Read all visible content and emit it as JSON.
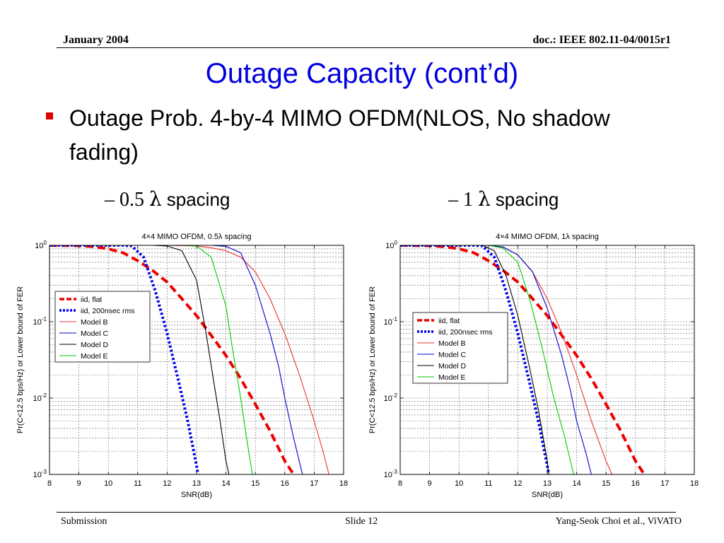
{
  "header": {
    "date": "January 2004",
    "doc": "doc.: IEEE 802.11-04/0015r1"
  },
  "title": "Outage Capacity (cont’d)",
  "bullet": "Outage Prob. 4-by-4 MIMO OFDM(NLOS, No shadow fading)",
  "subs": [
    {
      "dash": "–",
      "value": "0.5",
      "lambda": "λ",
      "word": "spacing"
    },
    {
      "dash": "–",
      "value": "1",
      "lambda": "λ",
      "word": "spacing"
    }
  ],
  "footer": {
    "left": "Submission",
    "center": "Slide 12",
    "right": "Yang-Seok Choi et al., ViVATO"
  },
  "colors": {
    "title": "#0000e0",
    "bullet": "#e00000"
  },
  "chart_data": [
    {
      "type": "line",
      "title": "4×4 MIMO OFDM, 0.5λ spacing",
      "xlabel": "SNR(dB)",
      "ylabel": "Pr(C<12.5 bps/Hz) or Lower bound of FER",
      "xlim": [
        8,
        18
      ],
      "ylim": [
        0.001,
        1
      ],
      "yscale": "log",
      "xticks": [
        "8",
        "9",
        "10",
        "11",
        "12",
        "13",
        "14",
        "15",
        "16",
        "17",
        "18"
      ],
      "yticks": [
        {
          "b": "10",
          "e": "0"
        },
        {
          "b": "10",
          "e": "-1"
        },
        {
          "b": "10",
          "e": "-2"
        },
        {
          "b": "10",
          "e": "-3"
        }
      ],
      "grid": true,
      "legend_position": "left",
      "series": [
        {
          "name": "iid, flat",
          "color": "#ee0000",
          "style": "dashed",
          "x": [
            8,
            9,
            9.5,
            10,
            10.5,
            11,
            11.5,
            12,
            12.5,
            13,
            13.5,
            14,
            14.5,
            15,
            15.5,
            16,
            16.3
          ],
          "y": [
            1,
            0.99,
            0.96,
            0.9,
            0.8,
            0.63,
            0.47,
            0.33,
            0.2,
            0.12,
            0.066,
            0.036,
            0.018,
            0.0083,
            0.0037,
            0.0015,
            0.001
          ]
        },
        {
          "name": "iid, 200nsec rms",
          "color": "#0000ee",
          "style": "dotted",
          "x": [
            8,
            10,
            10.5,
            10.8,
            11.2,
            11.6,
            12,
            12.4,
            12.7,
            13,
            13.05
          ],
          "y": [
            1,
            1,
            1,
            0.98,
            0.7,
            0.25,
            0.07,
            0.016,
            0.005,
            0.0013,
            0.001
          ]
        },
        {
          "name": "Model B",
          "color": "#ee3030",
          "style": "solid",
          "x": [
            8,
            11,
            12,
            13,
            13.5,
            14,
            14.5,
            15,
            15.5,
            16,
            16.5,
            17,
            17.3,
            17.5
          ],
          "y": [
            1,
            1,
            1,
            0.98,
            0.93,
            0.85,
            0.7,
            0.45,
            0.2,
            0.07,
            0.02,
            0.005,
            0.002,
            0.001
          ]
        },
        {
          "name": "Model C",
          "color": "#0000cc",
          "style": "solid",
          "x": [
            8,
            13,
            13.5,
            14,
            14.5,
            15,
            15.5,
            15.8,
            16,
            16.3,
            16.6
          ],
          "y": [
            1,
            1,
            1,
            0.97,
            0.8,
            0.3,
            0.07,
            0.025,
            0.01,
            0.003,
            0.001
          ]
        },
        {
          "name": "Model D",
          "color": "#000000",
          "style": "solid",
          "x": [
            8,
            11.5,
            12,
            12.5,
            13,
            13.3,
            13.6,
            13.8,
            14,
            14.1
          ],
          "y": [
            1,
            1,
            0.98,
            0.85,
            0.35,
            0.08,
            0.015,
            0.005,
            0.0015,
            0.001
          ]
        },
        {
          "name": "Model E",
          "color": "#00cc00",
          "style": "solid",
          "x": [
            8,
            12.5,
            13,
            13.5,
            14,
            14.2,
            14.5,
            14.7,
            14.9
          ],
          "y": [
            1,
            1,
            0.98,
            0.7,
            0.16,
            0.05,
            0.01,
            0.003,
            0.001
          ]
        }
      ]
    },
    {
      "type": "line",
      "title": "4×4 MIMO OFDM, 1λ spacing",
      "xlabel": "SNR(dB)",
      "ylabel": "Pr(C<12.5 bps/Hz) or Lower bound of FER",
      "xlim": [
        8,
        18
      ],
      "ylim": [
        0.001,
        1
      ],
      "yscale": "log",
      "xticks": [
        "8",
        "9",
        "10",
        "11",
        "12",
        "13",
        "14",
        "15",
        "16",
        "17",
        "18"
      ],
      "yticks": [
        {
          "b": "10",
          "e": "0"
        },
        {
          "b": "10",
          "e": "-1"
        },
        {
          "b": "10",
          "e": "-2"
        },
        {
          "b": "10",
          "e": "-3"
        }
      ],
      "grid": true,
      "legend_position": "left",
      "series": [
        {
          "name": "iid, flat",
          "color": "#ee0000",
          "style": "dashed",
          "x": [
            8,
            9,
            9.5,
            10,
            10.5,
            11,
            11.5,
            12,
            12.5,
            13,
            13.5,
            14,
            14.5,
            15,
            15.5,
            16,
            16.3
          ],
          "y": [
            1,
            0.99,
            0.96,
            0.9,
            0.8,
            0.63,
            0.47,
            0.33,
            0.2,
            0.12,
            0.066,
            0.036,
            0.018,
            0.0083,
            0.0037,
            0.0015,
            0.001
          ]
        },
        {
          "name": "iid, 200nsec rms",
          "color": "#0000ee",
          "style": "dotted",
          "x": [
            8,
            10,
            10.5,
            10.8,
            11.2,
            11.6,
            12,
            12.4,
            12.7,
            13,
            13.05
          ],
          "y": [
            1,
            1,
            1,
            0.98,
            0.7,
            0.25,
            0.07,
            0.016,
            0.005,
            0.0013,
            0.001
          ]
        },
        {
          "name": "Model B",
          "color": "#ee3030",
          "style": "solid",
          "x": [
            8,
            11,
            11.5,
            12,
            12.5,
            13,
            13.5,
            14,
            14.5,
            15,
            15.2
          ],
          "y": [
            1,
            1,
            0.95,
            0.75,
            0.45,
            0.2,
            0.07,
            0.02,
            0.005,
            0.0015,
            0.001
          ]
        },
        {
          "name": "Model C",
          "color": "#0000cc",
          "style": "solid",
          "x": [
            8,
            11,
            11.5,
            12,
            12.5,
            13,
            13.5,
            13.8,
            14,
            14.3,
            14.5
          ],
          "y": [
            1,
            1,
            0.95,
            0.75,
            0.45,
            0.15,
            0.035,
            0.012,
            0.005,
            0.002,
            0.001
          ]
        },
        {
          "name": "Model D",
          "color": "#000000",
          "style": "solid",
          "x": [
            8,
            10.8,
            11.2,
            11.6,
            12,
            12.4,
            12.7,
            13,
            13.05
          ],
          "y": [
            1,
            1,
            0.85,
            0.4,
            0.12,
            0.025,
            0.007,
            0.0015,
            0.001
          ]
        },
        {
          "name": "Model E",
          "color": "#00cc00",
          "style": "solid",
          "x": [
            8,
            11,
            11.5,
            12,
            12.4,
            12.8,
            13.2,
            13.6,
            13.9
          ],
          "y": [
            1,
            1,
            0.92,
            0.6,
            0.2,
            0.05,
            0.011,
            0.003,
            0.001
          ]
        }
      ]
    }
  ]
}
